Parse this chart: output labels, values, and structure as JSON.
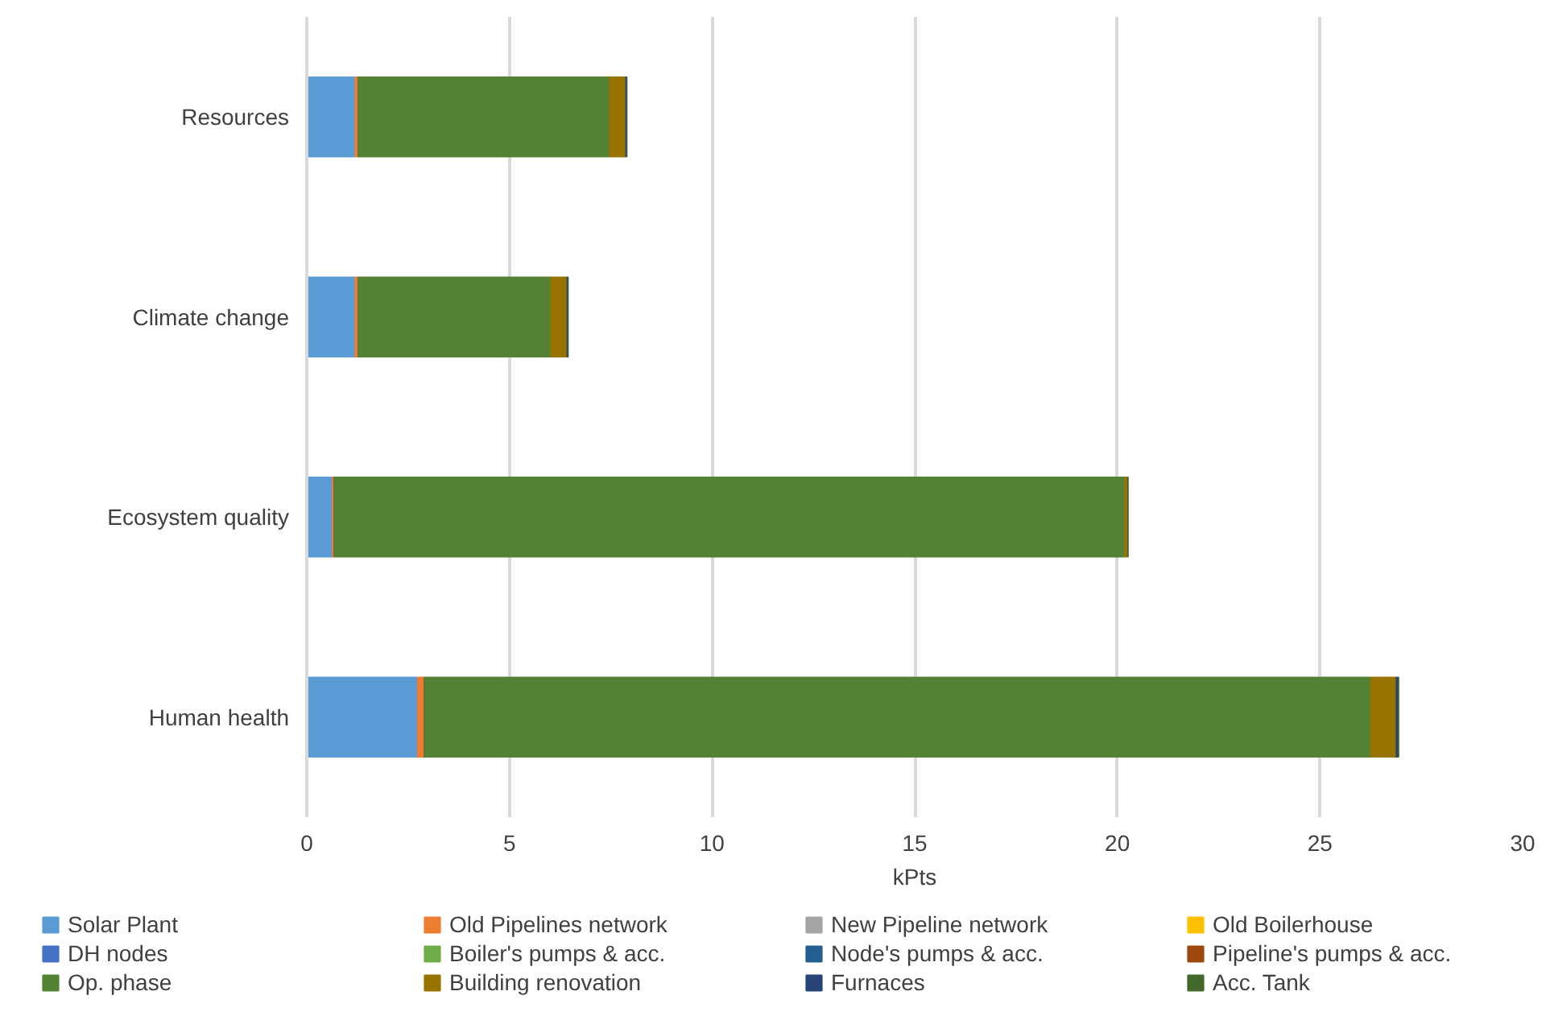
{
  "chart_data": {
    "type": "bar",
    "orientation": "horizontal",
    "stacked": true,
    "xlabel": "kPts",
    "categories": [
      "Resources",
      "Climate change",
      "Ecosystem quality",
      "Human health"
    ],
    "xlim": [
      0,
      30
    ],
    "xticks": [
      0,
      5,
      10,
      15,
      20,
      25,
      30
    ],
    "grid": "x",
    "legend": "bottom",
    "series": [
      {
        "name": "Solar Plant",
        "color": "#5b9bd5",
        "values": [
          1.19,
          1.19,
          0.63,
          2.73
        ]
      },
      {
        "name": "Old Pipelines network",
        "color": "#ed7d31",
        "values": [
          0.08,
          0.08,
          0.05,
          0.17
        ]
      },
      {
        "name": "New Pipeline network",
        "color": "#a5a5a5",
        "values": [
          0,
          0,
          0,
          0
        ]
      },
      {
        "name": "Old Boilerhouse",
        "color": "#ffc000",
        "values": [
          0,
          0,
          0,
          0
        ]
      },
      {
        "name": "DH nodes",
        "color": "#4472c4",
        "values": [
          0,
          0,
          0,
          0
        ]
      },
      {
        "name": "Boiler's pumps & acc.",
        "color": "#70ad47",
        "values": [
          0,
          0,
          0,
          0
        ]
      },
      {
        "name": "Node's pumps & acc.",
        "color": "#255e91",
        "values": [
          0,
          0,
          0,
          0
        ]
      },
      {
        "name": "Pipeline's pumps & acc.",
        "color": "#9e480e",
        "values": [
          0,
          0,
          0,
          0
        ]
      },
      {
        "name": "Op. phase",
        "color": "#548235",
        "values": [
          6.2,
          4.75,
          19.5,
          23.35
        ]
      },
      {
        "name": "Building renovation",
        "color": "#997300",
        "values": [
          0.4,
          0.4,
          0.08,
          0.63
        ]
      },
      {
        "name": "Furnaces",
        "color": "#264478",
        "values": [
          0.03,
          0.03,
          0,
          0.06
        ]
      },
      {
        "name": "Acc. Tank",
        "color": "#43682b",
        "values": [
          0,
          0,
          0,
          0
        ]
      }
    ]
  }
}
